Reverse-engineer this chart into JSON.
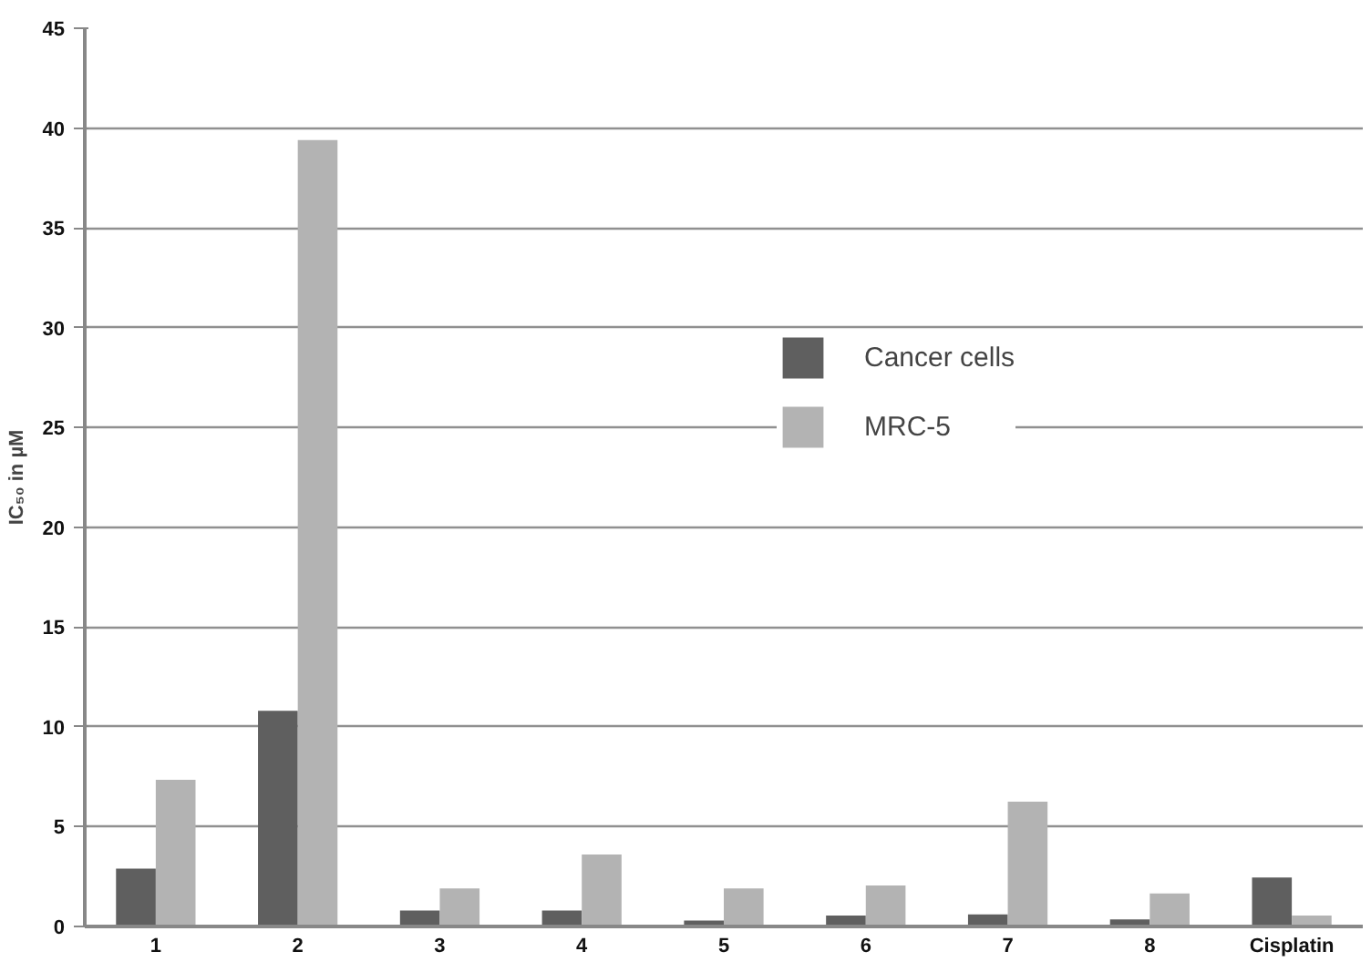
{
  "chart_data": {
    "type": "bar",
    "ylabel": "IC₅₀ in µM",
    "categories": [
      "1",
      "2",
      "3",
      "4",
      "5",
      "6",
      "7",
      "8",
      "Cisplatin"
    ],
    "series": [
      {
        "name": "Cancer cells",
        "color": "#5f5f5f",
        "values": [
          2.9,
          10.8,
          0.8,
          0.8,
          0.3,
          0.55,
          0.6,
          0.35,
          2.45
        ]
      },
      {
        "name": "MRC-5",
        "color": "#b3b3b3",
        "values": [
          7.35,
          39.4,
          1.9,
          3.6,
          1.9,
          2.05,
          6.25,
          1.65,
          0.55
        ]
      }
    ],
    "ylim": [
      0,
      45
    ],
    "yticks": [
      0,
      5,
      10,
      15,
      20,
      25,
      30,
      35,
      40,
      45
    ],
    "grid": "y",
    "legend": "top right"
  }
}
